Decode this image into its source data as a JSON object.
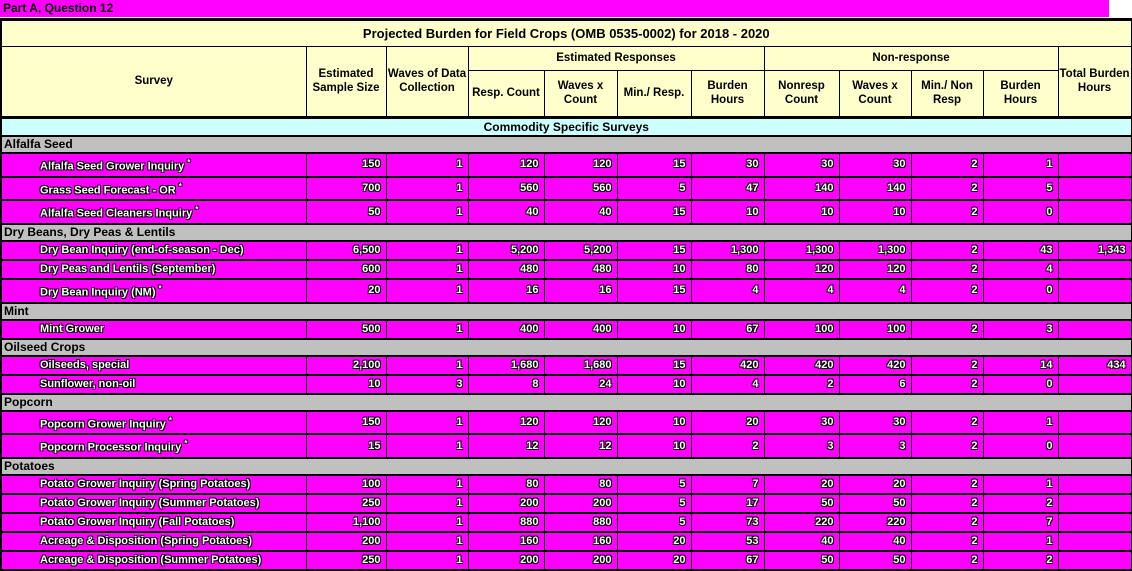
{
  "top_bar": {
    "label": "Part A, Question 12"
  },
  "colors": {
    "data_magenta": "#FF00FF",
    "section_gray": "#C0C0C0",
    "header_yellow": "#FFFFCC",
    "band_cyan": "#CCFFFF"
  },
  "table": {
    "title": "Projected Burden for Field Crops (OMB 0535-0002) for 2018 - 2020",
    "groups": {
      "estimated_responses": "Estimated Responses",
      "non_response": "Non-response"
    },
    "columns": [
      "Survey",
      "Estimated Sample Size",
      "Waves of Data Collection",
      "Resp. Count",
      "Waves x Count",
      "Min./ Resp.",
      "Burden Hours",
      "Nonresp Count",
      "Waves x Count",
      "Min./ Non Resp",
      "Burden Hours",
      "Total Burden Hours"
    ],
    "band": "Commodity Specific Surveys",
    "sections": [
      {
        "name": "Alfalfa Seed",
        "rows": [
          {
            "survey": "Alfalfa Seed Grower  Inquiry",
            "sup": "*",
            "values": [
              "150",
              "1",
              "120",
              "120",
              "15",
              "30",
              "30",
              "30",
              "2",
              "1",
              ""
            ]
          },
          {
            "survey": "Grass Seed Forecast - OR",
            "sup": "*",
            "values": [
              "700",
              "1",
              "560",
              "560",
              "5",
              "47",
              "140",
              "140",
              "2",
              "5",
              ""
            ]
          },
          {
            "survey": "Alfalfa Seed Cleaners Inquiry",
            "sup": "*",
            "values": [
              "50",
              "1",
              "40",
              "40",
              "15",
              "10",
              "10",
              "10",
              "2",
              "0",
              ""
            ]
          }
        ]
      },
      {
        "name": "Dry Beans, Dry Peas & Lentils",
        "rows": [
          {
            "survey": "Dry Bean Inquiry (end-of-season - Dec)",
            "sup": "",
            "values": [
              "6,500",
              "1",
              "5,200",
              "5,200",
              "15",
              "1,300",
              "1,300",
              "1,300",
              "2",
              "43",
              "1,343"
            ]
          },
          {
            "survey": "Dry Peas and Lentils (September)",
            "sup": "",
            "values": [
              "600",
              "1",
              "480",
              "480",
              "10",
              "80",
              "120",
              "120",
              "2",
              "4",
              ""
            ]
          },
          {
            "survey": "Dry Bean Inquiry (NM)",
            "sup": "*",
            "values": [
              "20",
              "1",
              "16",
              "16",
              "15",
              "4",
              "4",
              "4",
              "2",
              "0",
              ""
            ]
          }
        ]
      },
      {
        "name": "Mint",
        "rows": [
          {
            "survey": "Mint Grower",
            "sup": "",
            "values": [
              "500",
              "1",
              "400",
              "400",
              "10",
              "67",
              "100",
              "100",
              "2",
              "3",
              ""
            ]
          }
        ]
      },
      {
        "name": "Oilseed Crops",
        "rows": [
          {
            "survey": "Oilseeds, special",
            "sup": "",
            "values": [
              "2,100",
              "1",
              "1,680",
              "1,680",
              "15",
              "420",
              "420",
              "420",
              "2",
              "14",
              "434"
            ]
          },
          {
            "survey": "Sunflower, non-oil",
            "sup": "",
            "values": [
              "10",
              "3",
              "8",
              "24",
              "10",
              "4",
              "2",
              "6",
              "2",
              "0",
              ""
            ]
          }
        ]
      },
      {
        "name": "Popcorn",
        "rows": [
          {
            "survey": "Popcorn Grower Inquiry",
            "sup": "*",
            "values": [
              "150",
              "1",
              "120",
              "120",
              "10",
              "20",
              "30",
              "30",
              "2",
              "1",
              ""
            ]
          },
          {
            "survey": "Popcorn Processor Inquiry",
            "sup": "*",
            "values": [
              "15",
              "1",
              "12",
              "12",
              "10",
              "2",
              "3",
              "3",
              "2",
              "0",
              ""
            ]
          }
        ]
      },
      {
        "name": "Potatoes",
        "rows": [
          {
            "survey": "Potato Grower Inquiry (Spring Potatoes)",
            "sup": "",
            "values": [
              "100",
              "1",
              "80",
              "80",
              "5",
              "7",
              "20",
              "20",
              "2",
              "1",
              ""
            ]
          },
          {
            "survey": "Potato Grower Inquiry (Summer Potatoes)",
            "sup": "",
            "values": [
              "250",
              "1",
              "200",
              "200",
              "5",
              "17",
              "50",
              "50",
              "2",
              "2",
              ""
            ]
          },
          {
            "survey": "Potato Grower Inquiry (Fall Potatoes)",
            "sup": "",
            "values": [
              "1,100",
              "1",
              "880",
              "880",
              "5",
              "73",
              "220",
              "220",
              "2",
              "7",
              ""
            ]
          },
          {
            "survey": "Acreage & Disposition (Spring Potatoes)",
            "sup": "",
            "values": [
              "200",
              "1",
              "160",
              "160",
              "20",
              "53",
              "40",
              "40",
              "2",
              "1",
              ""
            ]
          },
          {
            "survey": "Acreage & Disposition (Summer Potatoes)",
            "sup": "",
            "values": [
              "250",
              "1",
              "200",
              "200",
              "20",
              "67",
              "50",
              "50",
              "2",
              "2",
              ""
            ]
          }
        ]
      }
    ]
  }
}
